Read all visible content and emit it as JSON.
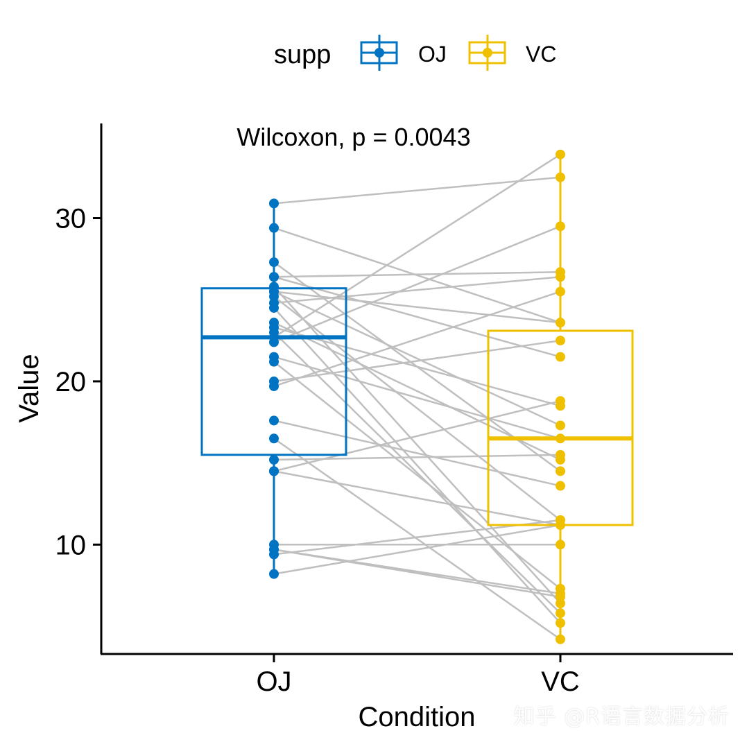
{
  "watermark": "知乎 @R语言数据分析",
  "colors": {
    "OJ": "#0073C2",
    "VC": "#EFC000",
    "pair_line": "#BFBFBF",
    "axis": "#000000"
  },
  "chart_data": {
    "type": "boxplot",
    "title": "",
    "xlabel": "Condition",
    "ylabel": "Value",
    "categories": [
      "OJ",
      "VC"
    ],
    "ylim": [
      3.3,
      35.8
    ],
    "yticks": [
      10,
      20,
      30
    ],
    "grid": false,
    "annotation": "Wilcoxon, p = 0.0043",
    "legend": {
      "title": "supp",
      "position": "top",
      "entries": [
        "OJ",
        "VC"
      ]
    },
    "boxes": [
      {
        "group": "OJ",
        "q1": 15.5,
        "median": 22.7,
        "q3": 25.7,
        "min": 8.2,
        "max": 30.9
      },
      {
        "group": "VC",
        "q1": 11.2,
        "median": 16.5,
        "q3": 23.1,
        "min": 4.2,
        "max": 33.9
      }
    ],
    "pairs": [
      {
        "OJ": 30.9,
        "VC": 32.5
      },
      {
        "OJ": 29.4,
        "VC": 23.6
      },
      {
        "OJ": 27.3,
        "VC": 14.5
      },
      {
        "OJ": 26.4,
        "VC": 26.7
      },
      {
        "OJ": 25.8,
        "VC": 6.4
      },
      {
        "OJ": 25.5,
        "VC": 17.3
      },
      {
        "OJ": 25.2,
        "VC": 11.5
      },
      {
        "OJ": 24.8,
        "VC": 26.4
      },
      {
        "OJ": 24.5,
        "VC": 5.2
      },
      {
        "OJ": 23.6,
        "VC": 15.2
      },
      {
        "OJ": 23.3,
        "VC": 18.5
      },
      {
        "OJ": 23.0,
        "VC": 5.8
      },
      {
        "OJ": 22.7,
        "VC": 33.9
      },
      {
        "OJ": 22.4,
        "VC": 29.5
      },
      {
        "OJ": 21.5,
        "VC": 16.5
      },
      {
        "OJ": 21.2,
        "VC": 7.3
      },
      {
        "OJ": 20.0,
        "VC": 22.5
      },
      {
        "OJ": 19.7,
        "VC": 25.5
      },
      {
        "OJ": 17.6,
        "VC": 13.6
      },
      {
        "OJ": 16.5,
        "VC": 4.2
      },
      {
        "OJ": 15.2,
        "VC": 15.5
      },
      {
        "OJ": 14.5,
        "VC": 18.8
      },
      {
        "OJ": 14.5,
        "VC": 11.2
      },
      {
        "OJ": 10.0,
        "VC": 10.0
      },
      {
        "OJ": 9.7,
        "VC": 6.8
      },
      {
        "OJ": 9.4,
        "VC": 11.5
      },
      {
        "OJ": 9.7,
        "VC": 7.0
      },
      {
        "OJ": 8.2,
        "VC": 11.2
      },
      {
        "OJ": 26.4,
        "VC": 21.5
      },
      {
        "OJ": 25.5,
        "VC": 23.6
      }
    ]
  }
}
